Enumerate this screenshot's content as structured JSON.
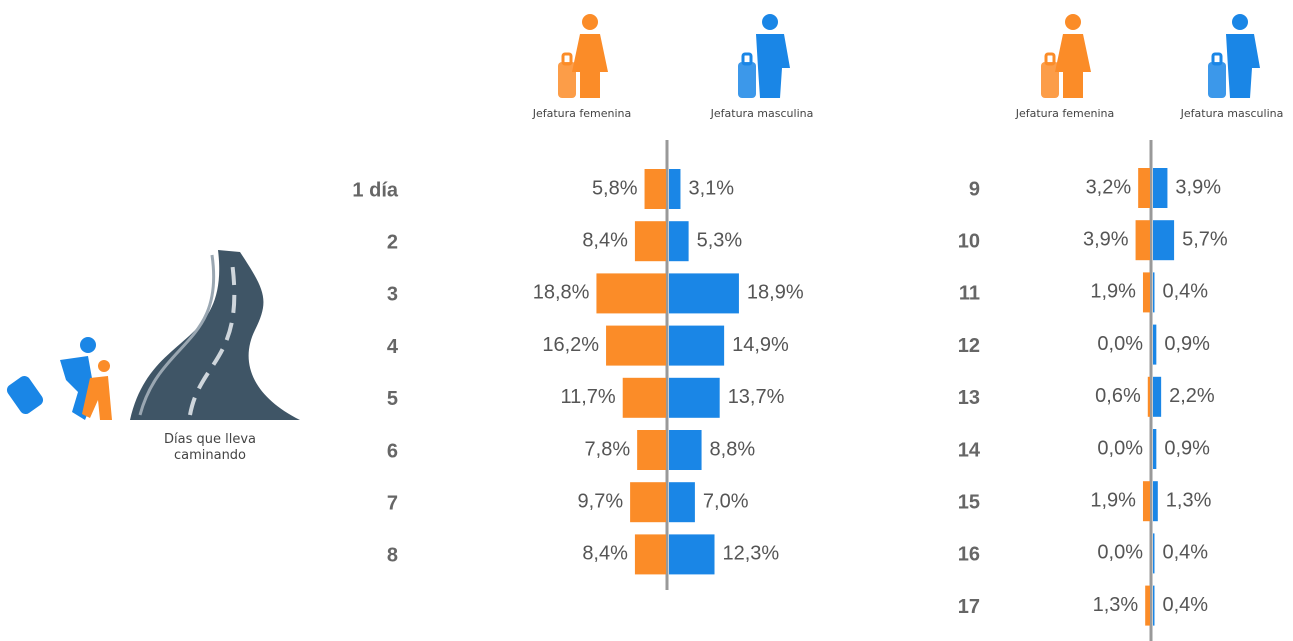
{
  "caption": "Días que lleva caminando",
  "chart_data": [
    {
      "type": "butterfly",
      "categories": [
        "1 día",
        "2",
        "3",
        "4",
        "5",
        "6",
        "7",
        "8"
      ],
      "series": [
        {
          "name": "Jefatura femenina",
          "color": "#fb8c28",
          "values": [
            5.8,
            8.4,
            18.8,
            16.2,
            11.7,
            7.8,
            9.7,
            8.4
          ],
          "value_labels": [
            "5,8%",
            "8,4%",
            "18,8%",
            "16,2%",
            "11,7%",
            "7,8%",
            "9,7%",
            "8,4%"
          ]
        },
        {
          "name": "Jefatura masculina",
          "color": "#1a86e6",
          "values": [
            3.1,
            5.3,
            18.9,
            14.9,
            13.7,
            8.8,
            7.0,
            12.3
          ],
          "value_labels": [
            "3,1%",
            "5,3%",
            "18,9%",
            "14,9%",
            "13,7%",
            "8,8%",
            "7,0%",
            "12,3%"
          ]
        }
      ]
    },
    {
      "type": "butterfly",
      "categories": [
        "9",
        "10",
        "11",
        "12",
        "13",
        "14",
        "15",
        "16",
        "17"
      ],
      "series": [
        {
          "name": "Jefatura femenina",
          "color": "#fb8c28",
          "values": [
            3.2,
            3.9,
            1.9,
            0.0,
            0.6,
            0.0,
            1.9,
            0.0,
            1.3
          ],
          "value_labels": [
            "3,2%",
            "3,9%",
            "1,9%",
            "0,0%",
            "0,6%",
            "0,0%",
            "1,9%",
            "0,0%",
            "1,3%"
          ]
        },
        {
          "name": "Jefatura masculina",
          "color": "#1a86e6",
          "values": [
            3.9,
            5.7,
            0.4,
            0.9,
            2.2,
            0.9,
            1.3,
            0.4,
            0.4
          ],
          "value_labels": [
            "3,9%",
            "5,7%",
            "0,4%",
            "0,9%",
            "2,2%",
            "0,9%",
            "1,3%",
            "0,4%",
            "0,4%"
          ]
        }
      ]
    }
  ]
}
